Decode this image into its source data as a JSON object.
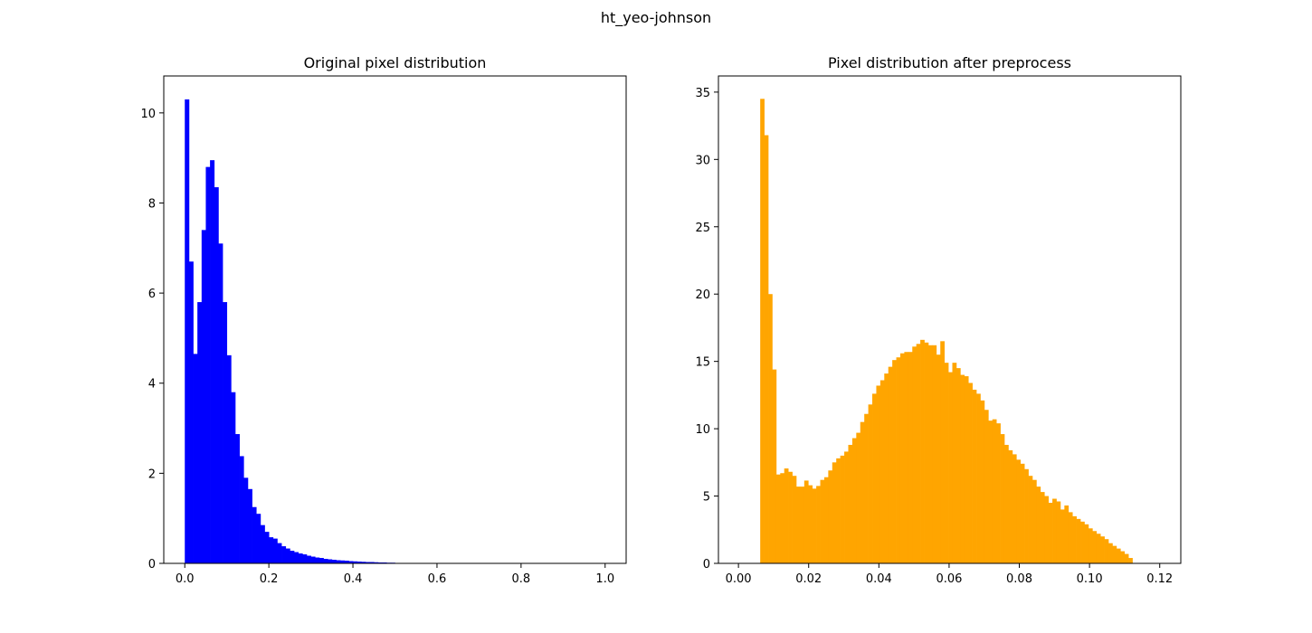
{
  "figure": {
    "suptitle": "ht_yeo-johnson"
  },
  "chart_data": [
    {
      "type": "bar",
      "title": "Original pixel distribution",
      "xlabel": "",
      "ylabel": "",
      "color": "#0000ff",
      "xlim": [
        -0.05,
        1.05
      ],
      "ylim": [
        0,
        10.82
      ],
      "xticks": [
        0.0,
        0.2,
        0.4,
        0.6,
        0.8,
        1.0
      ],
      "xtick_labels": [
        "0.0",
        "0.2",
        "0.4",
        "0.6",
        "0.8",
        "1.0"
      ],
      "yticks": [
        0,
        2,
        4,
        6,
        8,
        10
      ],
      "ytick_labels": [
        "0",
        "2",
        "4",
        "6",
        "8",
        "10"
      ],
      "bin_start": 0.0,
      "bin_width": 0.01,
      "values": [
        10.3,
        6.7,
        4.65,
        5.8,
        7.4,
        8.8,
        8.95,
        8.35,
        7.1,
        5.8,
        4.62,
        3.8,
        2.87,
        2.38,
        1.9,
        1.65,
        1.25,
        1.1,
        0.85,
        0.7,
        0.58,
        0.55,
        0.45,
        0.38,
        0.33,
        0.28,
        0.25,
        0.22,
        0.2,
        0.17,
        0.15,
        0.13,
        0.12,
        0.1,
        0.09,
        0.08,
        0.07,
        0.065,
        0.06,
        0.05,
        0.045,
        0.04,
        0.035,
        0.03,
        0.03,
        0.025,
        0.02,
        0.02,
        0.015,
        0.015,
        0.01,
        0.01,
        0.01,
        0.008,
        0.007,
        0.006,
        0.005,
        0.005,
        0.004,
        0.004,
        0.003,
        0.003,
        0.003,
        0.002,
        0.002,
        0.002,
        0.002,
        0.0015,
        0.0015,
        0.0015,
        0.001,
        0.001,
        0.001,
        0.001,
        0.001,
        0.001,
        0.0008,
        0.0008,
        0.0008,
        0.0006,
        0.0006,
        0.0006,
        0.0005,
        0.0005,
        0.0005,
        0.0004,
        0.0004,
        0.0004,
        0.0003,
        0.0003,
        0.0003,
        0.0002,
        0.0002,
        0.0002,
        0.0002,
        0.0001,
        0.0001,
        0.0001,
        0.0001,
        0.0001
      ]
    },
    {
      "type": "bar",
      "title": "Pixel distribution after preprocess",
      "xlabel": "",
      "ylabel": "",
      "color": "#ffa500",
      "xlim": [
        -0.0057,
        0.126
      ],
      "ylim": [
        0,
        36.2
      ],
      "xticks": [
        0.0,
        0.02,
        0.04,
        0.06,
        0.08,
        0.1,
        0.12
      ],
      "xtick_labels": [
        "0.00",
        "0.02",
        "0.04",
        "0.06",
        "0.08",
        "0.10",
        "0.12"
      ],
      "yticks": [
        0,
        5,
        10,
        15,
        20,
        25,
        30,
        35
      ],
      "ytick_labels": [
        "0",
        "5",
        "10",
        "15",
        "20",
        "25",
        "30",
        "35"
      ],
      "bin_start": 0.0062,
      "bin_width": 0.00114,
      "values": [
        34.5,
        31.8,
        20.0,
        14.4,
        6.6,
        6.7,
        7.05,
        6.8,
        6.5,
        5.7,
        5.7,
        6.15,
        5.8,
        5.55,
        5.75,
        6.2,
        6.4,
        6.9,
        7.5,
        7.8,
        8.0,
        8.3,
        8.8,
        9.3,
        9.7,
        10.5,
        11.1,
        11.8,
        12.6,
        13.2,
        13.6,
        14.1,
        14.6,
        15.1,
        15.3,
        15.6,
        15.7,
        15.7,
        16.1,
        16.3,
        16.6,
        16.4,
        16.2,
        16.2,
        15.5,
        16.5,
        14.9,
        14.2,
        14.9,
        14.5,
        14.0,
        13.9,
        13.4,
        12.9,
        12.6,
        12.1,
        11.4,
        10.6,
        10.7,
        10.4,
        9.6,
        8.8,
        8.4,
        8.1,
        7.7,
        7.4,
        7.0,
        6.5,
        6.2,
        5.7,
        5.3,
        5.0,
        4.5,
        4.8,
        4.6,
        4.0,
        4.3,
        3.8,
        3.5,
        3.3,
        3.1,
        2.9,
        2.6,
        2.4,
        2.2,
        2.0,
        1.8,
        1.5,
        1.3,
        1.1,
        0.9,
        0.7,
        0.4
      ]
    }
  ]
}
